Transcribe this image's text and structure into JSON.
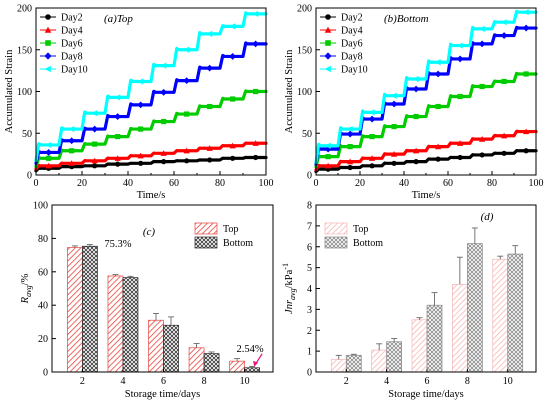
{
  "chart_data": [
    {
      "type": "line",
      "label": "(a)Top",
      "xlabel": "Time/s",
      "ylabel": "Accumulated Strain",
      "xlim": [
        0,
        100
      ],
      "ylim": [
        0,
        200
      ],
      "xticks": [
        0,
        20,
        40,
        60,
        80,
        100
      ],
      "yticks": [
        0,
        50,
        100,
        150,
        200
      ],
      "legend": "top-left",
      "series": [
        {
          "name": "Day2",
          "color": "#000000",
          "marker": "circle",
          "cycle_start": [
            5,
            8,
            10,
            11,
            13,
            14,
            16,
            17,
            18,
            20
          ],
          "cycle_end": [
            8,
            10,
            11,
            13,
            14,
            16,
            17,
            18,
            20,
            21
          ]
        },
        {
          "name": "Day4",
          "color": "#ff0000",
          "marker": "triangle-up",
          "cycle_start": [
            7,
            11,
            14,
            17,
            20,
            23,
            26,
            29,
            32,
            35
          ],
          "cycle_end": [
            11,
            14,
            17,
            20,
            23,
            26,
            29,
            32,
            35,
            38
          ]
        },
        {
          "name": "Day6",
          "color": "#00cc00",
          "marker": "square",
          "cycle_start": [
            10,
            20,
            29,
            37,
            46,
            55,
            64,
            73,
            82,
            91
          ],
          "cycle_end": [
            20,
            29,
            37,
            46,
            55,
            64,
            73,
            82,
            91,
            100
          ]
        },
        {
          "name": "Day8",
          "color": "#0000ff",
          "marker": "diamond",
          "cycle_start": [
            14,
            27,
            41,
            55,
            70,
            84,
            99,
            113,
            128,
            142
          ],
          "cycle_end": [
            27,
            41,
            55,
            70,
            84,
            99,
            113,
            128,
            142,
            157
          ]
        },
        {
          "name": "Day10",
          "color": "#00ffff",
          "marker": "triangle-left",
          "cycle_start": [
            17,
            36,
            55,
            74,
            93,
            112,
            131,
            150,
            169,
            178
          ],
          "cycle_end": [
            36,
            55,
            74,
            93,
            112,
            131,
            150,
            169,
            178,
            193
          ]
        }
      ]
    },
    {
      "type": "line",
      "label": "(b)Bottom",
      "xlabel": "Time/s",
      "ylabel": "Accumulated Strain",
      "xlim": [
        0,
        100
      ],
      "ylim": [
        0,
        200
      ],
      "xticks": [
        0,
        20,
        40,
        60,
        80,
        100
      ],
      "yticks": [
        0,
        50,
        100,
        150,
        200
      ],
      "legend": "top-left",
      "series": [
        {
          "name": "Day2",
          "color": "#000000",
          "marker": "circle",
          "cycle_start": [
            4,
            7,
            9,
            11,
            14,
            16,
            19,
            21,
            24,
            26
          ],
          "cycle_end": [
            7,
            9,
            11,
            14,
            16,
            19,
            21,
            24,
            26,
            29
          ]
        },
        {
          "name": "Day4",
          "color": "#ff0000",
          "marker": "triangle-up",
          "cycle_start": [
            6,
            11,
            16,
            20,
            25,
            29,
            34,
            38,
            43,
            47
          ],
          "cycle_end": [
            11,
            16,
            20,
            25,
            29,
            34,
            38,
            43,
            47,
            52
          ]
        },
        {
          "name": "Day6",
          "color": "#00cc00",
          "marker": "square",
          "cycle_start": [
            10,
            22,
            34,
            46,
            58,
            70,
            82,
            94,
            106,
            112
          ],
          "cycle_end": [
            22,
            34,
            46,
            58,
            70,
            82,
            94,
            106,
            112,
            121
          ]
        },
        {
          "name": "Day8",
          "color": "#0000ff",
          "marker": "diamond",
          "cycle_start": [
            13,
            31,
            49,
            67,
            85,
            103,
            121,
            139,
            157,
            167
          ],
          "cycle_end": [
            31,
            49,
            67,
            85,
            103,
            121,
            139,
            157,
            167,
            176
          ]
        },
        {
          "name": "Day10",
          "color": "#00ffff",
          "marker": "triangle-left",
          "cycle_start": [
            15,
            35,
            55,
            75,
            95,
            115,
            135,
            155,
            175,
            183
          ],
          "cycle_end": [
            35,
            55,
            75,
            95,
            115,
            135,
            155,
            175,
            183,
            195
          ]
        }
      ]
    },
    {
      "type": "bar",
      "label": "(c)",
      "xlabel": "Storage time/days",
      "ylabel": "R",
      "ylabel_sub": "avg",
      "ylabel_unit": "/%",
      "ylim": [
        0,
        100
      ],
      "yticks": [
        0,
        20,
        40,
        60,
        80,
        100
      ],
      "categories": [
        "2",
        "4",
        "6",
        "8",
        "10"
      ],
      "legend": "top-right",
      "series": [
        {
          "name": "Top",
          "color": "#e8433d",
          "pattern": "diagonal",
          "values": [
            74.5,
            57.5,
            31,
            14.5,
            6.5
          ],
          "errors": [
            1,
            0.8,
            4,
            2.5,
            1.5
          ]
        },
        {
          "name": "Bottom",
          "color": "#555555",
          "pattern": "crosshatch",
          "values": [
            75.3,
            56.5,
            28,
            11,
            2.54
          ],
          "errors": [
            1,
            0.8,
            5,
            1,
            0.8
          ]
        }
      ],
      "annotations": [
        {
          "text": "75.3%",
          "category": "2",
          "series": "Bottom"
        },
        {
          "text": "2.54%",
          "category": "10",
          "series": "Bottom"
        }
      ]
    },
    {
      "type": "bar",
      "label": "(d)",
      "xlabel": "Storage time/days",
      "ylabel": "Jnr",
      "ylabel_sub": "avg",
      "ylabel_unit": "/kPa",
      "ylabel_sup": "-1",
      "ylim": [
        0,
        8
      ],
      "yticks": [
        0,
        1,
        2,
        3,
        4,
        5,
        6,
        7,
        8
      ],
      "categories": [
        "2",
        "4",
        "6",
        "8",
        "10"
      ],
      "legend": "top-left",
      "series": [
        {
          "name": "Top",
          "color": "#f5b5b5",
          "pattern": "diagonal",
          "values": [
            0.6,
            1.05,
            2.5,
            4.2,
            5.4
          ],
          "errors": [
            0.2,
            0.3,
            0.1,
            1.3,
            0.15
          ]
        },
        {
          "name": "Bottom",
          "color": "#888888",
          "pattern": "crosshatch",
          "values": [
            0.8,
            1.45,
            3.2,
            6.15,
            5.65
          ],
          "errors": [
            0.05,
            0.15,
            0.6,
            0.75,
            0.4
          ]
        }
      ]
    }
  ]
}
